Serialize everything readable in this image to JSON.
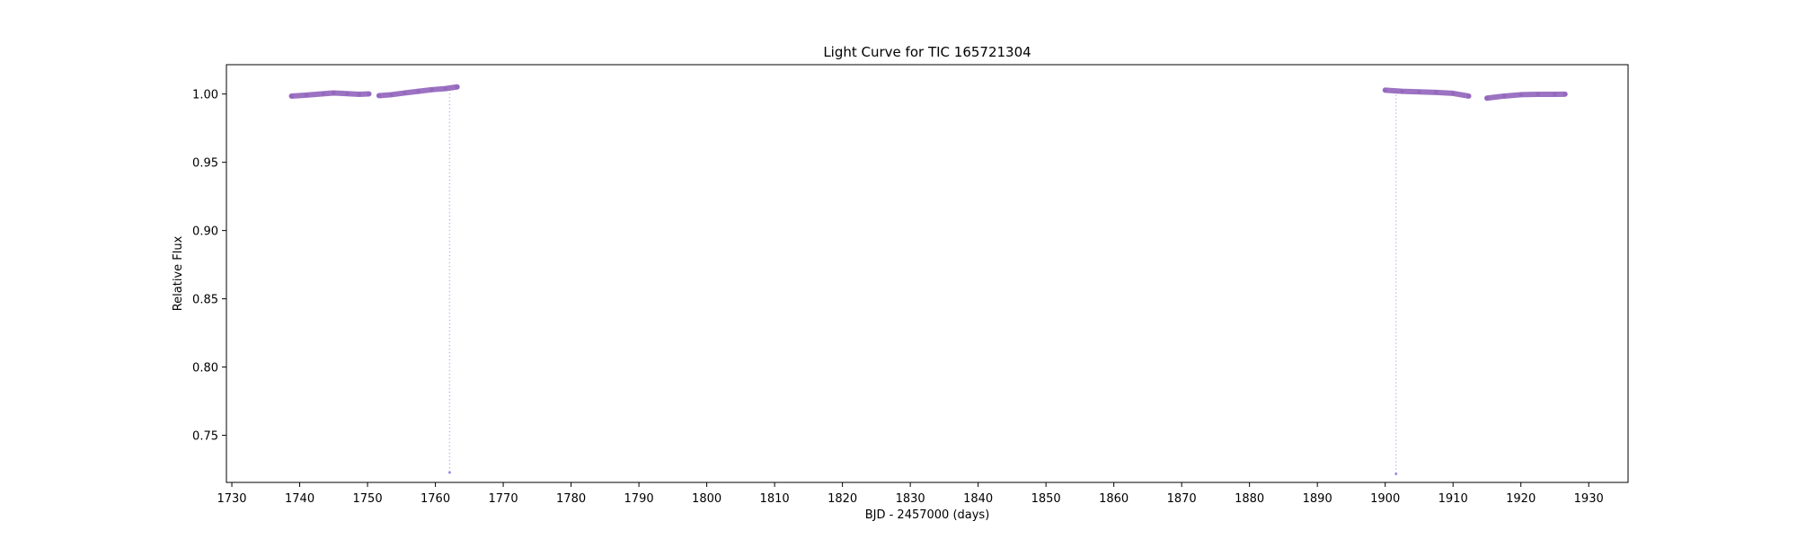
{
  "chart_data": {
    "type": "scatter",
    "title": "Light Curve for TIC 165721304",
    "xlabel": "BJD - 2457000 (days)",
    "ylabel": "Relative Flux",
    "xlim": [
      1729.2,
      1935.8
    ],
    "ylim": [
      0.7155,
      1.0215
    ],
    "xticks": [
      1730,
      1740,
      1750,
      1760,
      1770,
      1780,
      1790,
      1800,
      1810,
      1820,
      1830,
      1840,
      1850,
      1860,
      1870,
      1880,
      1890,
      1900,
      1910,
      1920,
      1930
    ],
    "xtick_labels": [
      "1730",
      "1740",
      "1750",
      "1760",
      "1770",
      "1780",
      "1790",
      "1800",
      "1810",
      "1820",
      "1830",
      "1840",
      "1850",
      "1860",
      "1870",
      "1880",
      "1890",
      "1900",
      "1910",
      "1920",
      "1930"
    ],
    "yticks": [
      0.75,
      0.8,
      0.85,
      0.9,
      0.95,
      1.0
    ],
    "ytick_labels": [
      "0.75",
      "0.80",
      "0.85",
      "0.90",
      "0.95",
      "1.00"
    ],
    "grid": false,
    "legend": "none",
    "series": [
      {
        "color": "#9467bd",
        "segments": [
          {
            "x": [
              1738.8,
              1741.0,
              1743.5,
              1745.0,
              1747.0,
              1748.8,
              1750.2
            ],
            "y": [
              0.9985,
              0.9992,
              1.0002,
              1.0008,
              1.0003,
              0.9998,
              1.0001
            ]
          },
          {
            "x": [
              1751.7,
              1753.5,
              1755.5,
              1757.5,
              1759.5,
              1761.5,
              1763.2
            ],
            "y": [
              0.9988,
              0.9995,
              1.0008,
              1.002,
              1.0032,
              1.004,
              1.0052
            ]
          },
          {
            "x": [
              1900.0,
              1902.5,
              1905.0,
              1907.5,
              1910.0,
              1912.3
            ],
            "y": [
              1.0028,
              1.002,
              1.0016,
              1.0012,
              1.0005,
              0.9985
            ]
          },
          {
            "x": [
              1915.0,
              1917.5,
              1920.0,
              1922.5,
              1925.0,
              1926.5
            ],
            "y": [
              0.997,
              0.9985,
              0.9995,
              0.9998,
              0.9998,
              0.9999
            ]
          }
        ]
      }
    ],
    "transits": [
      {
        "x": 1762.1,
        "y_min": 0.7227,
        "y_top": 1.003,
        "color": "#8c8ce6"
      },
      {
        "x": 1901.6,
        "y_min": 0.7217,
        "y_top": 1.002,
        "color": "#8c8ce6"
      }
    ]
  }
}
